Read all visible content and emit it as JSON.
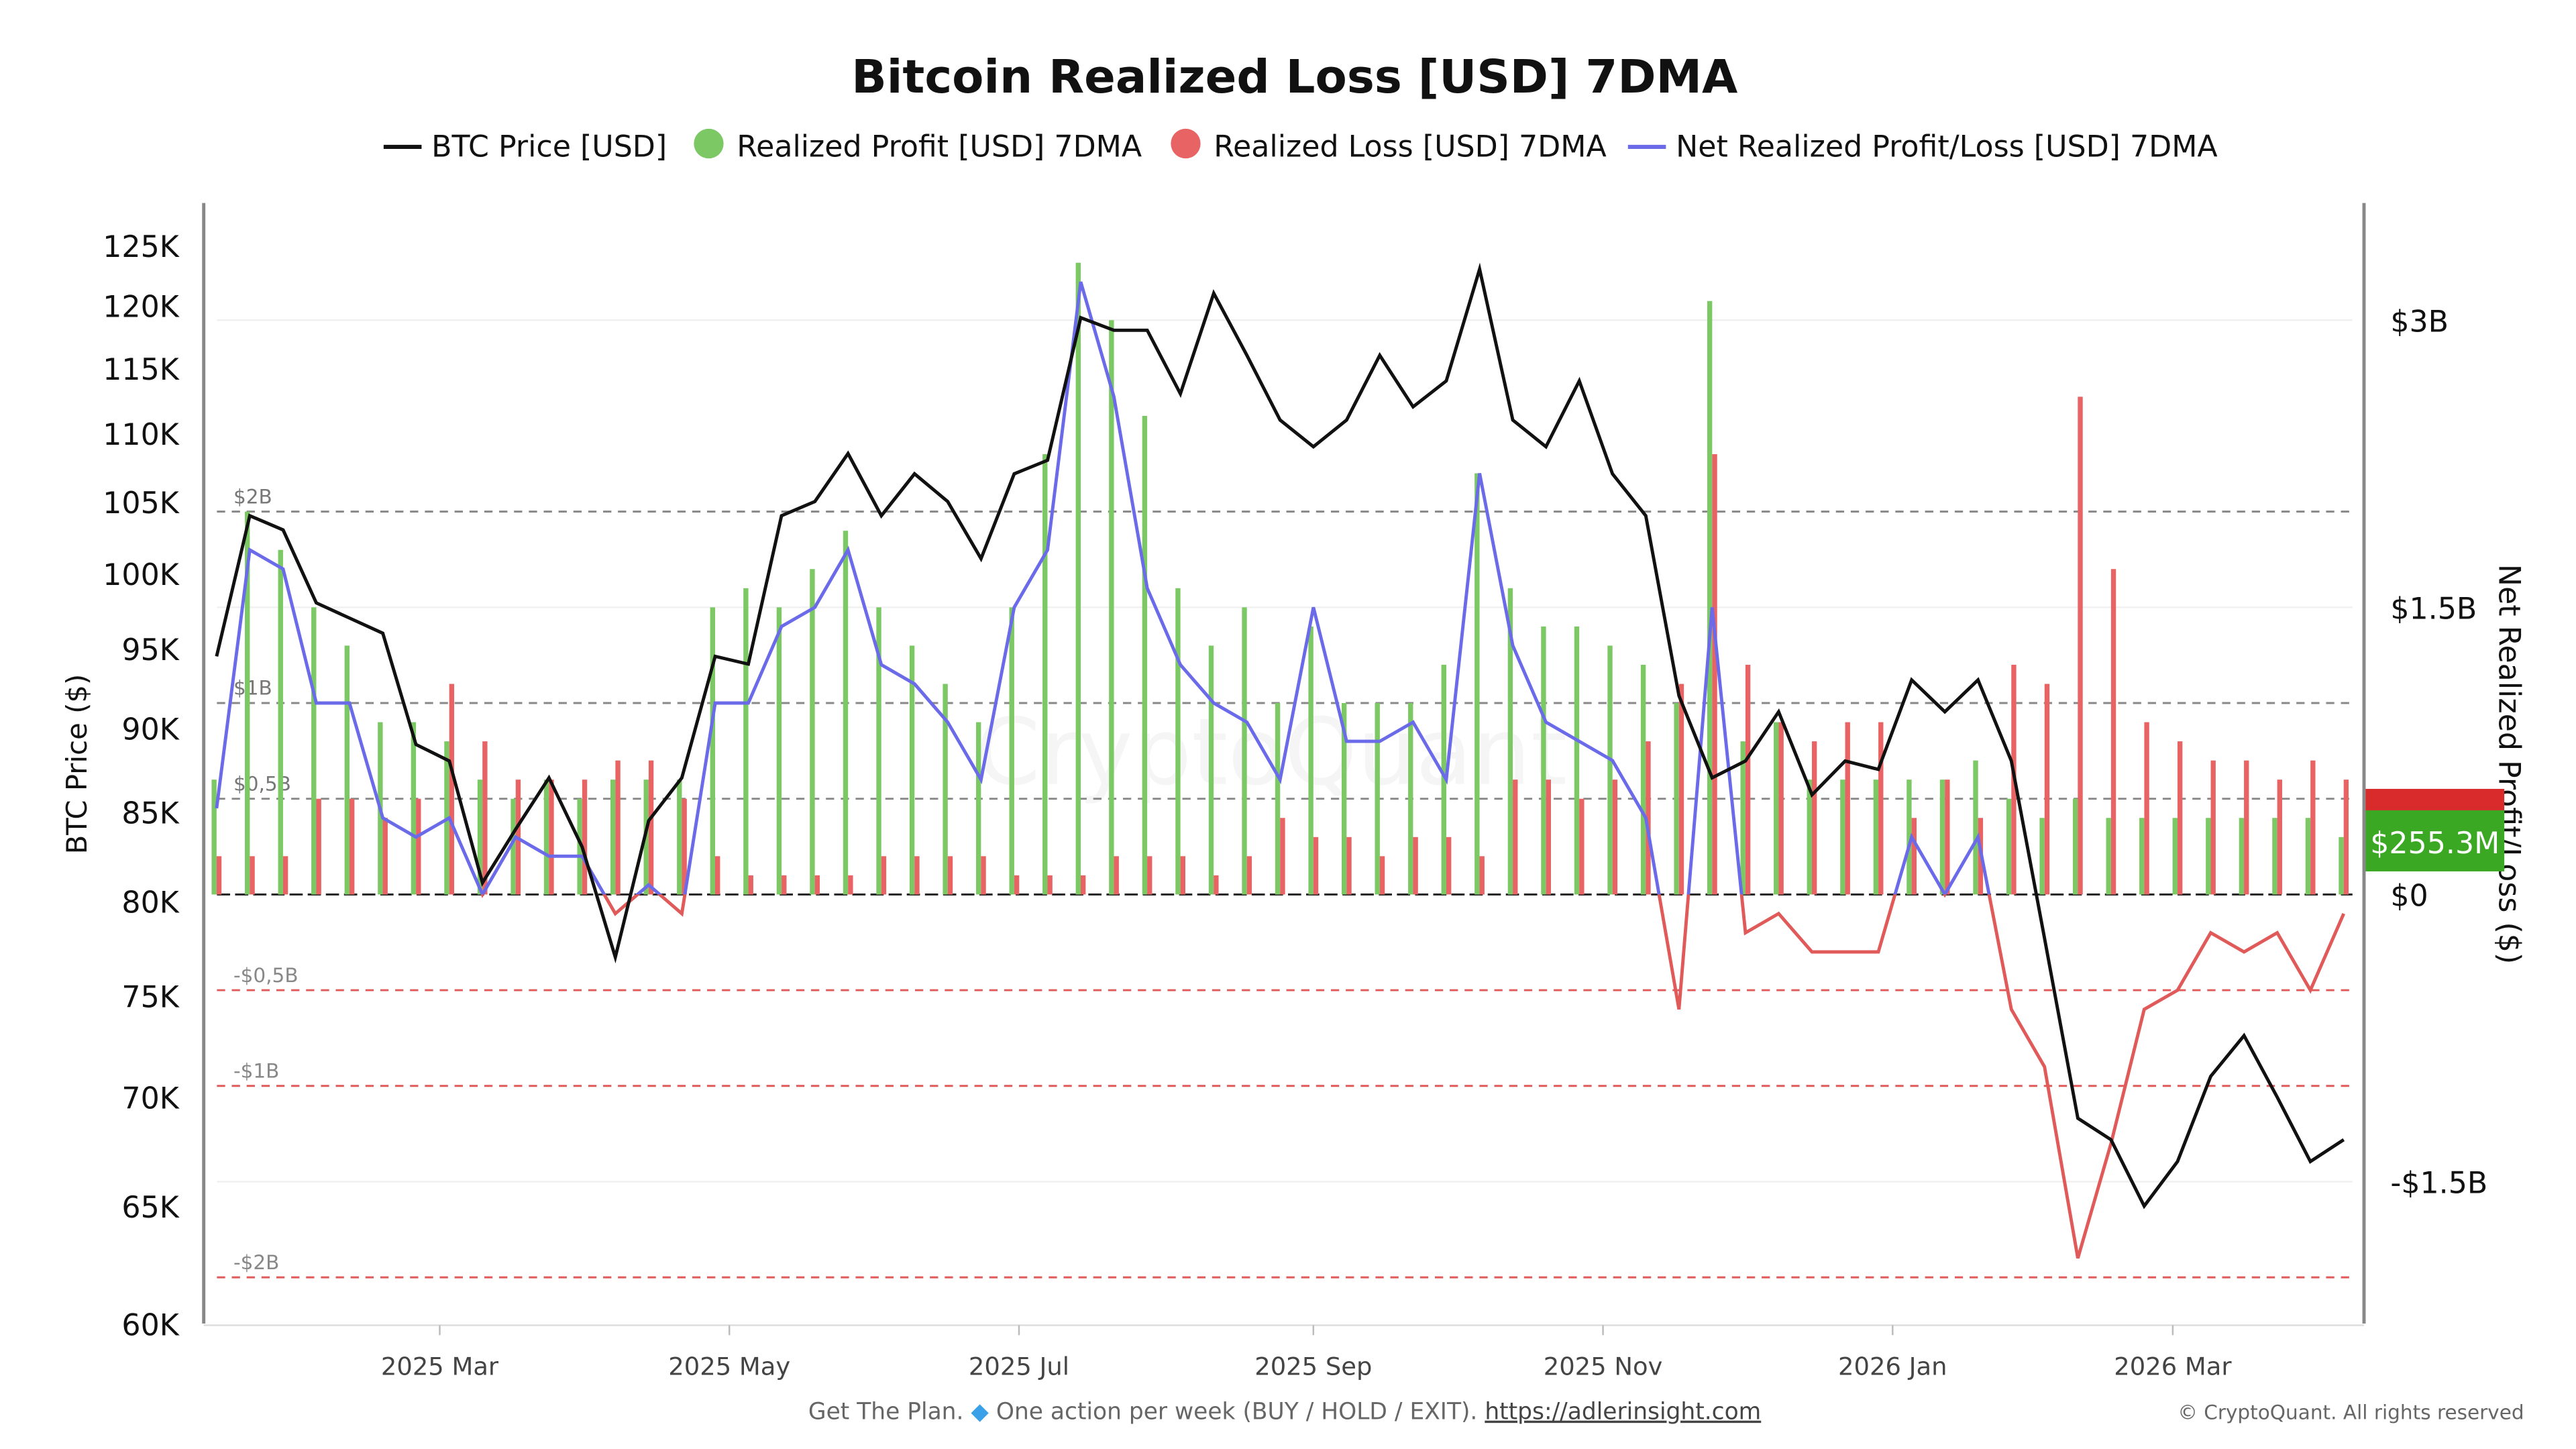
{
  "chart_data": {
    "type": "bar+line",
    "title": "Bitcoin Realized Loss [USD] 7DMA",
    "legend": {
      "placement": "top",
      "items": [
        {
          "label": "BTC Price [USD]",
          "color": "#111111",
          "marker": "line"
        },
        {
          "label": "Realized Profit [USD] 7DMA",
          "color": "#7cc865",
          "marker": "circle"
        },
        {
          "label": "Realized Loss [USD] 7DMA",
          "color": "#e86464",
          "marker": "circle"
        },
        {
          "label": "Net Realized Profit/Loss [USD] 7DMA",
          "color": "#6b6bea",
          "marker": "line"
        }
      ]
    },
    "ylabel_left": "BTC Price ($)",
    "ylabel_right": "Net Realized Profit/Loss ($)",
    "left_axis": {
      "scale": "log",
      "range": [
        60000,
        125000
      ],
      "ticks": [
        "125K",
        "120K",
        "115K",
        "110K",
        "105K",
        "100K",
        "95K",
        "90K",
        "85K",
        "80K",
        "75K",
        "70K",
        "65K",
        "60K"
      ]
    },
    "right_axis": {
      "scale": "linear",
      "unit": "USD billions",
      "range": [
        -2.25,
        3.5
      ],
      "ticks": [
        {
          "v": 3,
          "label": "$3B"
        },
        {
          "v": 1.5,
          "label": "$1.5B"
        },
        {
          "v": 0,
          "label": "$0"
        },
        {
          "v": -1.5,
          "label": "-$1.5B"
        }
      ]
    },
    "reference_lines": [
      {
        "v": 2,
        "label": "$2B",
        "color": "#888888"
      },
      {
        "v": 1,
        "label": "$1B",
        "color": "#888888"
      },
      {
        "v": 0.5,
        "label": "$0,5B",
        "color": "#888888"
      },
      {
        "v": -0.5,
        "label": "-$0,5B",
        "color": "#e05a5a"
      },
      {
        "v": -1,
        "label": "-$1B",
        "color": "#e05a5a"
      },
      {
        "v": -2,
        "label": "-$2B",
        "color": "#e05a5a"
      }
    ],
    "x_ticks": [
      {
        "date": "2025-03-01",
        "label": "2025 Mar"
      },
      {
        "date": "2025-05-01",
        "label": "2025 May"
      },
      {
        "date": "2025-07-01",
        "label": "2025 Jul"
      },
      {
        "date": "2025-09-01",
        "label": "2025 Sep"
      },
      {
        "date": "2025-11-01",
        "label": "2025 Nov"
      },
      {
        "date": "2026-01-01",
        "label": "2026 Jan"
      },
      {
        "date": "2026-03-01",
        "label": "2026 Mar"
      }
    ],
    "x_start": "2025-01-13",
    "x_end": "2026-04-08",
    "grid": true,
    "dates": [
      "2025-01-13",
      "2025-01-20",
      "2025-01-27",
      "2025-02-03",
      "2025-02-10",
      "2025-02-17",
      "2025-02-24",
      "2025-03-03",
      "2025-03-10",
      "2025-03-17",
      "2025-03-24",
      "2025-03-31",
      "2025-04-07",
      "2025-04-14",
      "2025-04-21",
      "2025-04-28",
      "2025-05-05",
      "2025-05-12",
      "2025-05-19",
      "2025-05-26",
      "2025-06-02",
      "2025-06-09",
      "2025-06-16",
      "2025-06-23",
      "2025-06-30",
      "2025-07-07",
      "2025-07-14",
      "2025-07-21",
      "2025-07-28",
      "2025-08-04",
      "2025-08-11",
      "2025-08-18",
      "2025-08-25",
      "2025-09-01",
      "2025-09-08",
      "2025-09-15",
      "2025-09-22",
      "2025-09-29",
      "2025-10-06",
      "2025-10-13",
      "2025-10-20",
      "2025-10-27",
      "2025-11-03",
      "2025-11-10",
      "2025-11-17",
      "2025-11-24",
      "2025-12-01",
      "2025-12-08",
      "2025-12-15",
      "2025-12-22",
      "2025-12-29",
      "2026-01-05",
      "2026-01-12",
      "2026-01-19",
      "2026-01-26",
      "2026-02-02",
      "2026-02-09",
      "2026-02-16",
      "2026-02-23",
      "2026-03-02",
      "2026-03-09",
      "2026-03-16",
      "2026-03-23",
      "2026-03-30",
      "2026-04-06"
    ],
    "series": [
      {
        "name": "BTC Price [USD]",
        "axis": "left",
        "type": "line",
        "color": "#111111",
        "values": [
          94500,
          104000,
          103000,
          98000,
          97000,
          96000,
          89000,
          88000,
          81000,
          84000,
          87000,
          83000,
          77000,
          84500,
          87000,
          94500,
          94000,
          104000,
          105000,
          108500,
          104000,
          107000,
          105000,
          101000,
          107000,
          108000,
          119000,
          118000,
          118000,
          113000,
          121000,
          116000,
          111000,
          109000,
          111000,
          116000,
          112000,
          114000,
          123000,
          111000,
          109000,
          114000,
          107000,
          104000,
          92000,
          87000,
          88000,
          91000,
          86000,
          88000,
          87500,
          93000,
          91000,
          93000,
          88000,
          78000,
          69000,
          68000,
          65000,
          67000,
          71000,
          73000,
          70000,
          67000,
          68000
        ]
      },
      {
        "name": "Realized Profit [USD] 7DMA",
        "axis": "right",
        "type": "bar",
        "unit": "USD billions",
        "color": "#7cc865",
        "values": [
          0.6,
          2.0,
          1.8,
          1.5,
          1.3,
          0.9,
          0.9,
          0.8,
          0.6,
          0.5,
          0.6,
          0.5,
          0.6,
          0.6,
          0.6,
          1.5,
          1.6,
          1.5,
          1.7,
          1.9,
          1.5,
          1.3,
          1.1,
          0.9,
          1.5,
          2.3,
          3.3,
          3.0,
          2.5,
          1.6,
          1.3,
          1.5,
          1.0,
          1.4,
          1.0,
          1.0,
          1.0,
          1.2,
          2.2,
          1.6,
          1.4,
          1.4,
          1.3,
          1.2,
          1.0,
          3.1,
          0.8,
          0.9,
          0.6,
          0.6,
          0.6,
          0.6,
          0.6,
          0.7,
          0.5,
          0.4,
          0.5,
          0.4,
          0.4,
          0.4,
          0.4,
          0.4,
          0.4,
          0.4,
          0.3
        ]
      },
      {
        "name": "Realized Loss [USD] 7DMA",
        "axis": "right",
        "type": "bar",
        "unit": "USD billions",
        "color": "#e86464",
        "values": [
          0.2,
          0.2,
          0.2,
          0.5,
          0.5,
          0.4,
          0.5,
          1.1,
          0.8,
          0.6,
          0.6,
          0.6,
          0.7,
          0.7,
          0.5,
          0.2,
          0.1,
          0.1,
          0.1,
          0.1,
          0.2,
          0.2,
          0.2,
          0.2,
          0.1,
          0.1,
          0.1,
          0.2,
          0.2,
          0.2,
          0.1,
          0.2,
          0.4,
          0.3,
          0.3,
          0.2,
          0.3,
          0.3,
          0.2,
          0.6,
          0.6,
          0.5,
          0.6,
          0.8,
          1.1,
          2.3,
          1.2,
          0.9,
          0.8,
          0.9,
          0.9,
          0.4,
          0.6,
          0.4,
          1.2,
          1.1,
          2.6,
          1.7,
          0.9,
          0.8,
          0.7,
          0.7,
          0.6,
          0.7,
          0.6
        ]
      },
      {
        "name": "Net Realized Profit/Loss [USD] 7DMA",
        "axis": "right",
        "type": "line",
        "unit": "USD billions",
        "color": "#6b6bea",
        "negative_color": "#e05a5a",
        "values": [
          0.45,
          1.8,
          1.7,
          1.0,
          1.0,
          0.4,
          0.3,
          0.4,
          0.0,
          0.3,
          0.2,
          0.2,
          -0.1,
          0.05,
          -0.1,
          1.0,
          1.0,
          1.4,
          1.5,
          1.8,
          1.2,
          1.1,
          0.9,
          0.6,
          1.5,
          1.8,
          3.2,
          2.6,
          1.6,
          1.2,
          1.0,
          0.9,
          0.6,
          1.5,
          0.8,
          0.8,
          0.9,
          0.6,
          2.2,
          1.3,
          0.9,
          0.8,
          0.7,
          0.4,
          -0.6,
          1.5,
          -0.2,
          -0.1,
          -0.3,
          -0.3,
          -0.3,
          0.3,
          0.0,
          0.3,
          -0.6,
          -0.9,
          -1.9,
          -1.3,
          -0.6,
          -0.5,
          -0.2,
          -0.3,
          -0.2,
          -0.5,
          -0.1
        ]
      }
    ],
    "last_value_label": "$255.3M",
    "watermark": "CryptoQuant"
  },
  "footer": {
    "promo_text": "Get The Plan.",
    "promo_icon": "diamond-icon",
    "promo_detail": "One action per week (BUY / HOLD / EXIT).",
    "link": "https://adlerinsight.com",
    "copyright": "© CryptoQuant. All rights reserved"
  },
  "colors": {
    "profit": "#7cc865",
    "loss": "#e86464",
    "net": "#6b6bea",
    "price": "#111111",
    "last_profit_box": "#3aa823",
    "last_loss_box": "#d92b2b"
  }
}
